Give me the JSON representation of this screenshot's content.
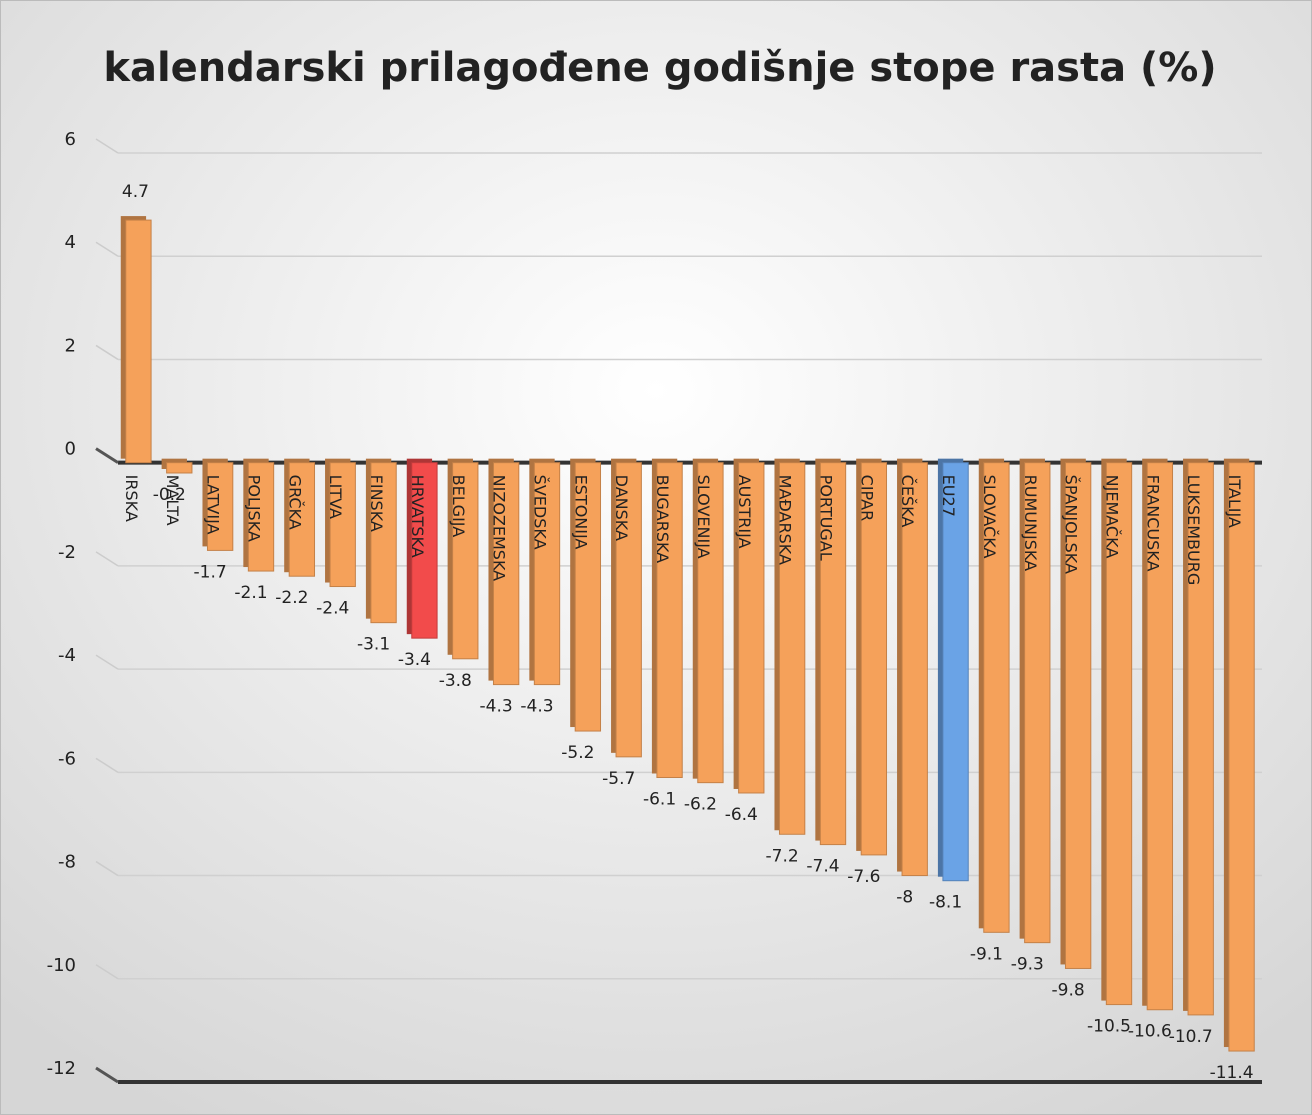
{
  "chart_data": {
    "type": "bar",
    "title": "kalendarski prilagođene godišnje stope rasta (%)",
    "categories": [
      "IRSKA",
      "MALTA",
      "LATVIJA",
      "POLJSKA",
      "GRČKA",
      "LITVA",
      "FINSKA",
      "HRVATSKA",
      "BELGIJA",
      "NIZOZEMSKA",
      "ŠVEDSKA",
      "ESTONIJA",
      "DANSKA",
      "BUGARSKA",
      "SLOVENIJA",
      "AUSTRIJA",
      "MAĐARSKA",
      "PORTUGAL",
      "CIPAR",
      "ČEŠKA",
      "EU27",
      "SLOVAČKA",
      "RUMUNJSKA",
      "ŠPANJOLSKA",
      "NJEMAČKA",
      "FRANCUSKA",
      "LUKSEMBURG",
      "ITALIJA"
    ],
    "values": [
      4.7,
      -0.2,
      -1.7,
      -2.1,
      -2.2,
      -2.4,
      -3.1,
      -3.4,
      -3.8,
      -4.3,
      -4.3,
      -5.2,
      -5.7,
      -6.1,
      -6.2,
      -6.4,
      -7.2,
      -7.4,
      -7.6,
      -8,
      -8.1,
      -9.1,
      -9.3,
      -9.8,
      -10.5,
      -10.6,
      -10.7,
      -11.4
    ],
    "colors": [
      "#f5a15a",
      "#f5a15a",
      "#f5a15a",
      "#f5a15a",
      "#f5a15a",
      "#f5a15a",
      "#f5a15a",
      "#f24b4b",
      "#f5a15a",
      "#f5a15a",
      "#f5a15a",
      "#f5a15a",
      "#f5a15a",
      "#f5a15a",
      "#f5a15a",
      "#f5a15a",
      "#f5a15a",
      "#f5a15a",
      "#f5a15a",
      "#f5a15a",
      "#6aa3e6",
      "#f5a15a",
      "#f5a15a",
      "#f5a15a",
      "#f5a15a",
      "#f5a15a",
      "#f5a15a",
      "#f5a15a"
    ],
    "ylim": [
      -12,
      6
    ],
    "yticks": [
      -12,
      -10,
      -8,
      -6,
      -4,
      -2,
      0,
      2,
      4,
      6
    ],
    "grid": true
  }
}
